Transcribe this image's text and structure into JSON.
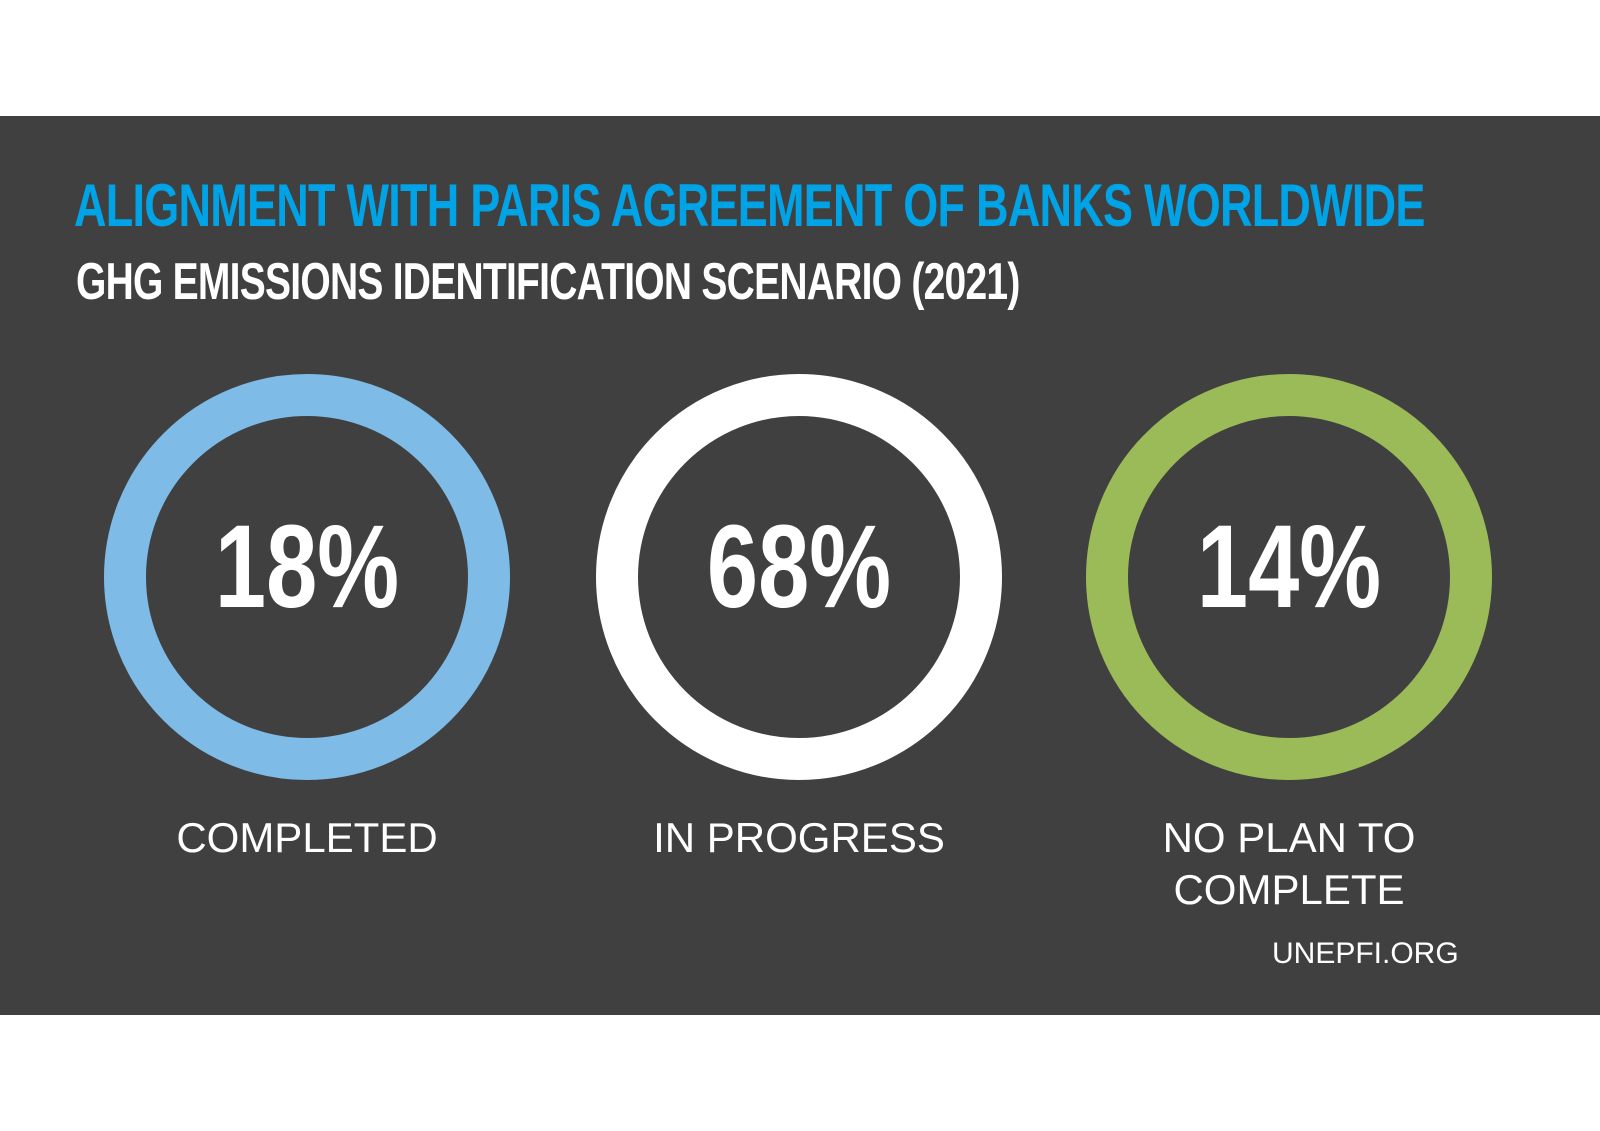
{
  "chart_data": {
    "type": "donut",
    "title": "ALIGNMENT WITH PARIS AGREEMENT OF BANKS WORLDWIDE",
    "subtitle": "GHG EMISSIONS IDENTIFICATION SCENARIO (2021)",
    "items": [
      {
        "value_label": "18%",
        "value": 18,
        "label": "COMPLETED",
        "color": "#7ebbe6"
      },
      {
        "value_label": "68%",
        "value": 68,
        "label": "IN PROGRESS",
        "color": "#ffffff"
      },
      {
        "value_label": "14%",
        "value": 14,
        "label": "NO PLAN TO COMPLETE",
        "color": "#9bbb59"
      }
    ],
    "source": "UNEPFI.ORG"
  }
}
